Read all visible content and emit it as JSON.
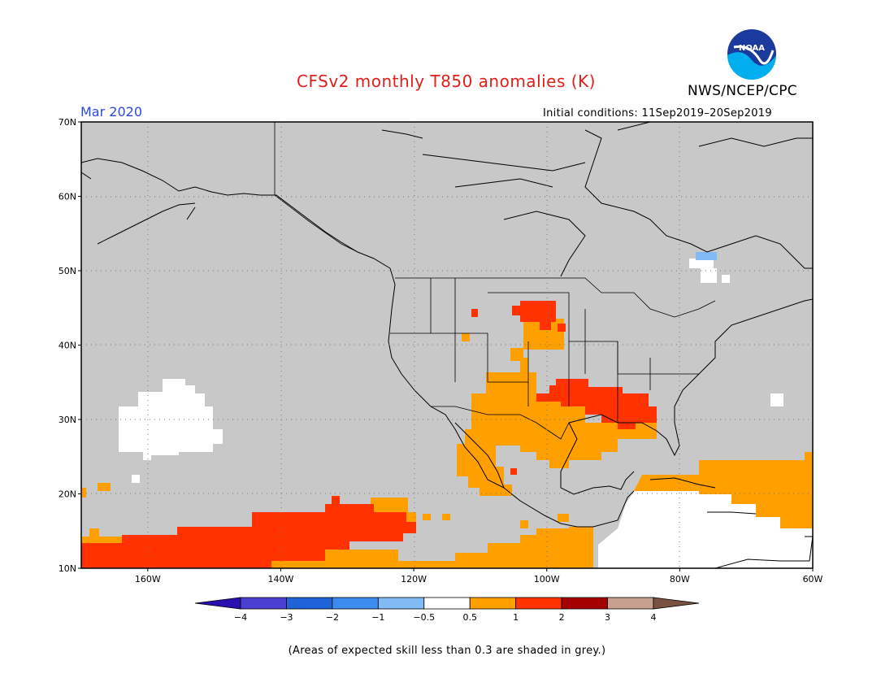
{
  "title": "CFSv2 monthly T850 anomalies (K)",
  "organization": "NWS/NCEP/CPC",
  "logo_text": "NOAA",
  "valid_month": "Mar 2020",
  "initial_conditions": "Initial conditions: 11Sep2019–20Sep2019",
  "footnote": "(Areas of expected skill less than 0.3 are shaded in grey.)",
  "lat_labels": [
    "70N",
    "60N",
    "50N",
    "40N",
    "30N",
    "20N",
    "10N"
  ],
  "lat_values": [
    70,
    60,
    50,
    40,
    30,
    20,
    10
  ],
  "lon_labels": [
    "160W",
    "140W",
    "120W",
    "100W",
    "80W",
    "60W"
  ],
  "lon_values": [
    -160,
    -140,
    -120,
    -100,
    -80,
    -60
  ],
  "colorbar": {
    "labels": [
      "−4",
      "−3",
      "−2",
      "−1",
      "−0.5",
      "0.5",
      "1",
      "2",
      "3",
      "4"
    ],
    "colors": [
      "#2a10b0",
      "#4a3fd0",
      "#1e64d8",
      "#3c8cf0",
      "#82baf5",
      "#ffffff",
      "#ff9f00",
      "#ff3200",
      "#a50000",
      "#c8a090",
      "#7a5040"
    ]
  },
  "colors": {
    "low_skill_grey": "#c8c8c8",
    "title_red": "#e0201a",
    "month_blue": "#2a4be0"
  }
}
